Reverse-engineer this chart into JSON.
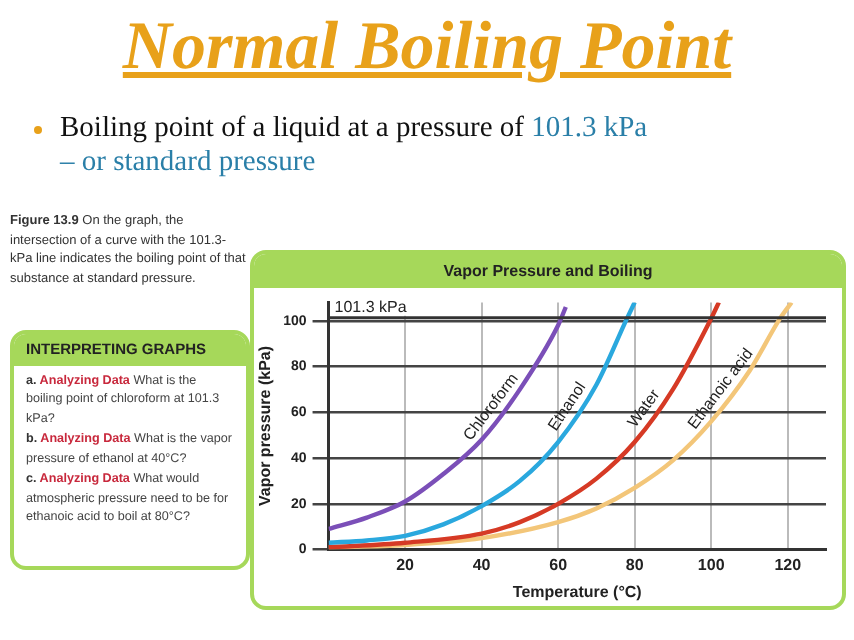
{
  "chart_data": {
    "type": "line",
    "title": "Vapor Pressure and Boiling",
    "xlabel": "Temperature (°C)",
    "ylabel": "Vapor pressure (kPa)",
    "xlim": [
      0,
      130
    ],
    "xticks": [
      20,
      40,
      60,
      80,
      100,
      120
    ],
    "ylim": [
      0,
      108
    ],
    "yticks": [
      0,
      20,
      40,
      60,
      80,
      100
    ],
    "grid": true,
    "legend": false,
    "ref_lines": [
      {
        "axis": "y",
        "value": 101.3,
        "label": "101.3 kPa",
        "color": "#333333"
      }
    ],
    "series": [
      {
        "name": "Chloroform",
        "color": "#7b4fb8",
        "x": [
          0,
          10,
          20,
          30,
          40,
          50,
          60,
          62
        ],
        "values": [
          9,
          14,
          21,
          33,
          48,
          70,
          98,
          106
        ]
      },
      {
        "name": "Ethanol",
        "color": "#2aa8de",
        "x": [
          0,
          10,
          20,
          30,
          40,
          50,
          60,
          70,
          78,
          80
        ],
        "values": [
          3,
          4,
          6,
          11,
          19,
          30,
          47,
          72,
          101,
          108
        ]
      },
      {
        "name": "Water",
        "color": "#d63a25",
        "x": [
          0,
          20,
          40,
          50,
          60,
          70,
          80,
          90,
          100,
          102
        ],
        "values": [
          1,
          3,
          7,
          12,
          20,
          31,
          47,
          70,
          101,
          108
        ]
      },
      {
        "name": "Ethanoic acid",
        "color": "#f3c679",
        "x": [
          0,
          20,
          40,
          60,
          70,
          80,
          90,
          100,
          110,
          118,
          121
        ],
        "values": [
          1,
          2,
          5,
          12,
          18,
          27,
          39,
          56,
          78,
          101,
          108
        ]
      }
    ],
    "annotations": [
      "Normal Boiling Point",
      "Boiling point of a liquid at a pressure of",
      "101.3 kPa",
      "– or standard pressure",
      "Figure 13.9",
      "On the graph, the intersection of a curve with the 101.3-kPa line indicates the boiling point of that substance at standard pressure.",
      "INTERPRETING GRAPHS",
      "a.",
      "Analyzing Data",
      "What is the boiling point of chloroform at 101.3 kPa?",
      "b.",
      "Analyzing Data",
      "What is the vapor pressure of ethanol at 40°C?",
      "c.",
      "Analyzing Data",
      "What would atmospheric pressure need to be for ethanoic acid to boil at 80°C?"
    ]
  }
}
